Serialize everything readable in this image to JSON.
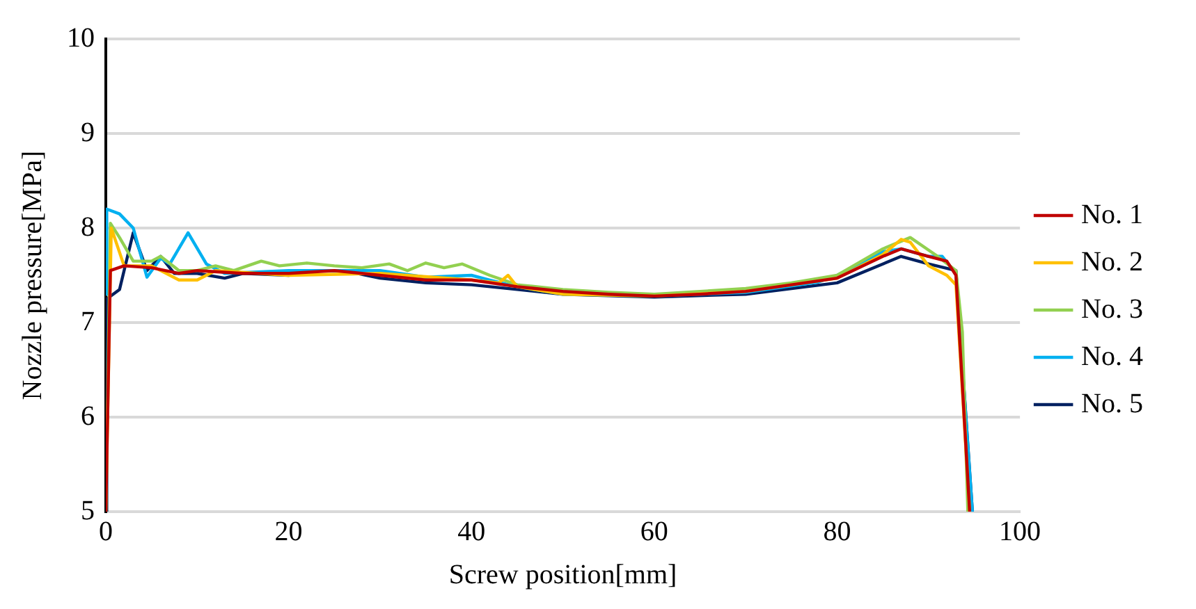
{
  "chart_data": {
    "type": "line",
    "xlabel": "Screw position[mm]",
    "ylabel": "Nozzle pressure[MPa]",
    "xlim": [
      0,
      100
    ],
    "xticks": [
      0,
      20,
      40,
      60,
      80,
      100
    ],
    "ylim": [
      5,
      10
    ],
    "yticks": [
      5,
      6,
      7,
      8,
      9,
      10
    ],
    "grid": "y",
    "legend": "right",
    "marker": "none",
    "line_style": "solid",
    "series": [
      {
        "name": "No. 1",
        "color": "#c00000",
        "x": [
          0,
          0.5,
          2,
          5,
          8,
          10,
          15,
          20,
          25,
          30,
          35,
          40,
          45,
          50,
          55,
          60,
          65,
          70,
          75,
          80,
          85,
          87,
          90,
          92,
          93,
          94.5
        ],
        "values": [
          5,
          7.55,
          7.6,
          7.58,
          7.52,
          7.55,
          7.52,
          7.52,
          7.55,
          7.5,
          7.45,
          7.45,
          7.38,
          7.33,
          7.3,
          7.28,
          7.3,
          7.33,
          7.4,
          7.47,
          7.7,
          7.78,
          7.7,
          7.65,
          7.5,
          5
        ]
      },
      {
        "name": "No. 2",
        "color": "#ffc000",
        "x": [
          0,
          0.6,
          2,
          5,
          8,
          10,
          12,
          20,
          30,
          40,
          43,
          44,
          45,
          50,
          60,
          70,
          80,
          85,
          87,
          88,
          90,
          92,
          93,
          94.5
        ],
        "values": [
          5,
          8.0,
          7.6,
          7.6,
          7.45,
          7.45,
          7.55,
          7.5,
          7.52,
          7.45,
          7.42,
          7.5,
          7.38,
          7.3,
          7.28,
          7.33,
          7.47,
          7.72,
          7.88,
          7.85,
          7.6,
          7.5,
          7.4,
          5
        ]
      },
      {
        "name": "No. 3",
        "color": "#92d050",
        "x": [
          0,
          0.5,
          1.5,
          3,
          5,
          6,
          8,
          10,
          12,
          14,
          17,
          19,
          22,
          25,
          28,
          31,
          33,
          35,
          37,
          39,
          42,
          45,
          50,
          55,
          60,
          65,
          70,
          75,
          80,
          85,
          88,
          91,
          93,
          93.7,
          94.3
        ],
        "values": [
          5,
          8.05,
          7.9,
          7.65,
          7.65,
          7.7,
          7.55,
          7.55,
          7.6,
          7.55,
          7.65,
          7.6,
          7.63,
          7.6,
          7.58,
          7.62,
          7.55,
          7.63,
          7.58,
          7.62,
          7.5,
          7.4,
          7.35,
          7.32,
          7.3,
          7.33,
          7.36,
          7.42,
          7.5,
          7.78,
          7.9,
          7.7,
          7.55,
          6.9,
          5
        ]
      },
      {
        "name": "No. 4",
        "color": "#00b0f0",
        "x": [
          0,
          0.1,
          1.5,
          3,
          4.5,
          6,
          7,
          9,
          11,
          13,
          20,
          30,
          35,
          40,
          42,
          45,
          50,
          60,
          70,
          78,
          80,
          85,
          87,
          90,
          91.5,
          93,
          94.8
        ],
        "values": [
          7.3,
          8.2,
          8.15,
          8.0,
          7.48,
          7.68,
          7.62,
          7.95,
          7.62,
          7.52,
          7.55,
          7.55,
          7.48,
          7.5,
          7.45,
          7.38,
          7.3,
          7.28,
          7.32,
          7.43,
          7.5,
          7.75,
          7.78,
          7.7,
          7.7,
          7.52,
          5
        ]
      },
      {
        "name": "No. 5",
        "color": "#002060",
        "x": [
          0,
          0.1,
          1.5,
          3,
          4.5,
          6,
          7.5,
          10,
          13,
          15,
          20,
          22,
          26,
          30,
          35,
          40,
          45,
          50,
          60,
          70,
          80,
          85,
          87,
          90,
          93,
          94.8
        ],
        "values": [
          5,
          7.25,
          7.35,
          7.95,
          7.55,
          7.7,
          7.52,
          7.52,
          7.47,
          7.52,
          7.5,
          7.55,
          7.55,
          7.47,
          7.42,
          7.4,
          7.35,
          7.3,
          7.27,
          7.3,
          7.42,
          7.62,
          7.7,
          7.62,
          7.55,
          5
        ]
      }
    ]
  }
}
